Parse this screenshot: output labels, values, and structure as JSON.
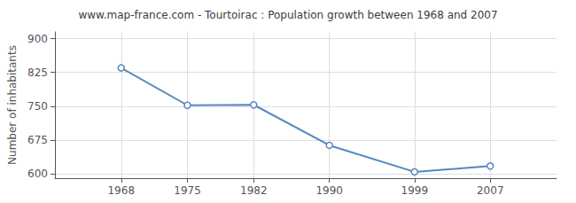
{
  "chart_data": {
    "type": "line",
    "title": "www.map-france.com - Tourtoirac : Population growth between 1968 and 2007",
    "ylabel": "Number of inhabitants",
    "x": [
      1968,
      1975,
      1982,
      1990,
      1999,
      2007
    ],
    "values": [
      835,
      752,
      753,
      663,
      604,
      617
    ],
    "color": "#5588bb",
    "marker": "circle",
    "xlim": [
      1961,
      2014
    ],
    "xticks": [
      1968,
      1975,
      1982,
      1990,
      1999,
      2007
    ],
    "ylim": [
      590,
      915
    ],
    "yticks": [
      600,
      675,
      750,
      825,
      900
    ],
    "grid": true
  }
}
